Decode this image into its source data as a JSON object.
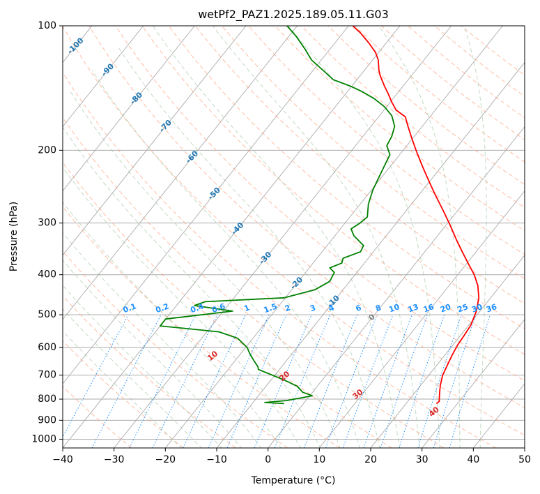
{
  "chart_data": {
    "type": "line",
    "title": "wetPf2_PAZ1.2025.189.05.11.G03",
    "xlabel": "Temperature (°C)",
    "ylabel": "Pressure (hPa)",
    "xlim": [
      -40,
      50
    ],
    "ylim": [
      1050,
      100
    ],
    "yscale": "log",
    "grid": true,
    "skew": true,
    "x_ticks": [
      -40,
      -30,
      -20,
      -10,
      0,
      10,
      20,
      30,
      40,
      50
    ],
    "y_ticks": [
      100,
      200,
      300,
      400,
      500,
      600,
      700,
      800,
      900,
      1000
    ],
    "colors": {
      "temperature": "#ff0000",
      "dewpoint": "#008000",
      "isotherm": "#aaaaaa",
      "dry_adiabat": "#ffa07a",
      "moist_adiabat": "#8fbc8f",
      "mixing_ratio": "#1e90ff",
      "isotherm_label": "#1f77b4",
      "dry_adiabat_label": "#d62728",
      "freezing_label": "#7f7f7f"
    },
    "series": [
      {
        "key": "temperature",
        "points": [
          [
            25.9,
            820
          ],
          [
            26.1,
            810
          ],
          [
            25.6,
            795
          ],
          [
            24.6,
            765
          ],
          [
            23.8,
            740
          ],
          [
            22.7,
            700
          ],
          [
            22.1,
            665
          ],
          [
            21.4,
            625
          ],
          [
            20.9,
            590
          ],
          [
            20.7,
            560
          ],
          [
            20.4,
            530
          ],
          [
            19.3,
            490
          ],
          [
            17.7,
            455
          ],
          [
            15.6,
            425
          ],
          [
            13.2,
            400
          ],
          [
            10.2,
            375
          ],
          [
            7.3,
            352
          ],
          [
            4.4,
            330
          ],
          [
            1.0,
            305
          ],
          [
            -2.8,
            280
          ],
          [
            -6.7,
            257
          ],
          [
            -10.1,
            238
          ],
          [
            -13.9,
            218
          ],
          [
            -17.5,
            200
          ],
          [
            -20.2,
            187
          ],
          [
            -22.8,
            175
          ],
          [
            -24.8,
            166
          ],
          [
            -27.6,
            160
          ],
          [
            -29.7,
            153
          ],
          [
            -31.7,
            146
          ],
          [
            -33.6,
            140
          ],
          [
            -36.1,
            132
          ],
          [
            -37.2,
            128
          ],
          [
            -38.9,
            121
          ],
          [
            -40.6,
            116
          ],
          [
            -43.4,
            110
          ],
          [
            -46.6,
            104
          ],
          [
            -49.2,
            100
          ]
        ]
      },
      {
        "key": "dewpoint",
        "points": [
          [
            -3.8,
            820
          ],
          [
            -7.7,
            815
          ],
          [
            -3.7,
            806
          ],
          [
            0.5,
            785
          ],
          [
            -1.9,
            770
          ],
          [
            -3.9,
            745
          ],
          [
            -7.3,
            720
          ],
          [
            -14.1,
            678
          ],
          [
            -14.6,
            668
          ],
          [
            -16.4,
            645
          ],
          [
            -18.3,
            620
          ],
          [
            -19.7,
            600
          ],
          [
            -23.0,
            570
          ],
          [
            -27.6,
            550
          ],
          [
            -40.0,
            532
          ],
          [
            -40.0,
            512
          ],
          [
            -28.2,
            490
          ],
          [
            -36.5,
            475
          ],
          [
            -35.0,
            465
          ],
          [
            -20.2,
            455
          ],
          [
            -15.5,
            435
          ],
          [
            -13.9,
            415
          ],
          [
            -14.4,
            395
          ],
          [
            -16.0,
            385
          ],
          [
            -14.4,
            375
          ],
          [
            -14.9,
            365
          ],
          [
            -12.5,
            352
          ],
          [
            -12.9,
            340
          ],
          [
            -16.3,
            322
          ],
          [
            -17.9,
            310
          ],
          [
            -17.1,
            300
          ],
          [
            -16.6,
            290
          ],
          [
            -18.4,
            270
          ],
          [
            -19.7,
            250
          ],
          [
            -20.4,
            235
          ],
          [
            -21.4,
            215
          ],
          [
            -21.9,
            205
          ],
          [
            -23.9,
            195
          ],
          [
            -24.4,
            185
          ],
          [
            -25.4,
            175
          ],
          [
            -27.6,
            165
          ],
          [
            -30.4,
            157
          ],
          [
            -33.7,
            150
          ],
          [
            -37.3,
            144
          ],
          [
            -40.2,
            140
          ],
          [
            -44.6,
            135
          ],
          [
            -47.6,
            129
          ],
          [
            -51.9,
            121
          ],
          [
            -54.8,
            114
          ],
          [
            -58.6,
            106
          ],
          [
            -62.0,
            100
          ]
        ]
      }
    ],
    "isotherm_labels": [
      "-100",
      "-90",
      "-80",
      "-70",
      "-60",
      "-50",
      "-40",
      "-30",
      "-20",
      "-10",
      "0"
    ],
    "isotherm_label_values": [
      -100,
      -90,
      -80,
      -70,
      -60,
      -50,
      -40,
      -30,
      -20,
      -10,
      0
    ],
    "mixing_ratio_labels": [
      "0.1",
      "0.2",
      "0.4",
      "0.6",
      "1",
      "1.5",
      "2",
      "3",
      "4",
      "6",
      "8",
      "10",
      "13",
      "16",
      "20",
      "25",
      "30",
      "36"
    ],
    "mixing_ratio_values": [
      0.1,
      0.2,
      0.4,
      0.6,
      1,
      1.5,
      2,
      3,
      4,
      6,
      8,
      10,
      13,
      16,
      20,
      25,
      30,
      36
    ],
    "dry_adiabat_labels": [
      "10",
      "20",
      "30",
      "40"
    ],
    "dry_adiabat_label_values": [
      10,
      20,
      30,
      40
    ]
  }
}
